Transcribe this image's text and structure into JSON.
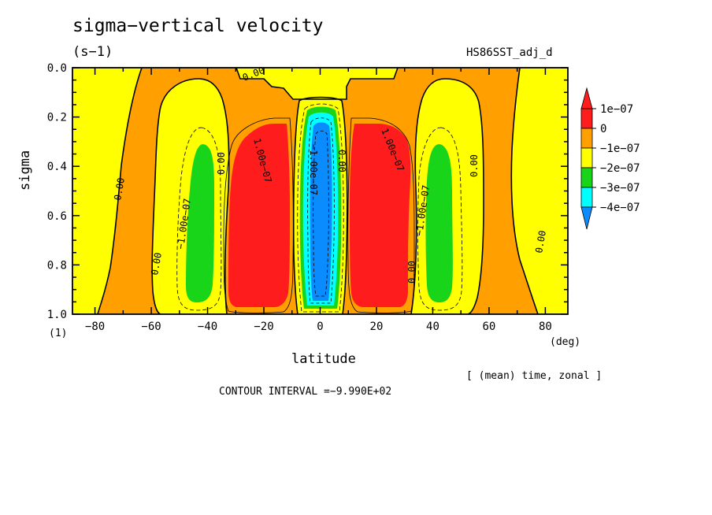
{
  "title": "sigma−vertical velocity",
  "units": "(s−1)",
  "run_name": "HS86SST_adj_d",
  "y_axis": {
    "label": "sigma",
    "unit": "(1)",
    "ticks": [
      "0.0",
      "0.2",
      "0.4",
      "0.6",
      "0.8",
      "1.0"
    ]
  },
  "x_axis": {
    "label": "latitude",
    "unit": "(deg)",
    "ticks": [
      "−80",
      "−60",
      "−40",
      "−20",
      "0",
      "20",
      "40",
      "60",
      "80"
    ]
  },
  "averaging_note": "[ (mean) time, zonal ]",
  "contour_interval": "CONTOUR INTERVAL =−9.990E+02",
  "colors": {
    "above_1e-07": "#ff1c1c",
    "0_to_1e-07": "#ff9f00",
    "-1e-07_to_0": "#ffff00",
    "-2e-07_to_-1e-07": "#19d519",
    "-3e-07_to_-2e-07": "#00ffff",
    "below_-3e-07": "#0a8cff"
  },
  "chart_data": {
    "type": "contour",
    "title": "sigma−vertical velocity",
    "xlabel": "latitude",
    "ylabel": "sigma",
    "xlim": [
      -88,
      88
    ],
    "ylim": [
      1.0,
      0.0
    ],
    "y_reversed": true,
    "legend": {
      "placement": "right",
      "labels": [
        "1e−07",
        "0",
        "−1e−07",
        "−2e−07",
        "−3e−07",
        "−4e−07"
      ]
    },
    "contour_labels": [
      "0.00",
      "1.00e−07",
      "−1.00e−07"
    ],
    "features": [
      {
        "kind": "ascent",
        "lat_range": [
          -7,
          7
        ],
        "sigma_range": [
          0.15,
          1.0
        ],
        "min_value": -4e-07
      },
      {
        "kind": "descent",
        "lat_range": [
          -33,
          -9
        ],
        "sigma_range": [
          0.23,
          0.97
        ],
        "max_value": 1e-07
      },
      {
        "kind": "descent",
        "lat_range": [
          9,
          33
        ],
        "sigma_range": [
          0.23,
          0.97
        ],
        "max_value": 1e-07
      },
      {
        "kind": "ascent",
        "lat_range": [
          -48,
          -38
        ],
        "sigma_range": [
          0.3,
          0.95
        ],
        "min_value": -2e-07
      },
      {
        "kind": "ascent",
        "lat_range": [
          38,
          48
        ],
        "sigma_range": [
          0.3,
          0.95
        ],
        "min_value": -2e-07
      }
    ]
  }
}
